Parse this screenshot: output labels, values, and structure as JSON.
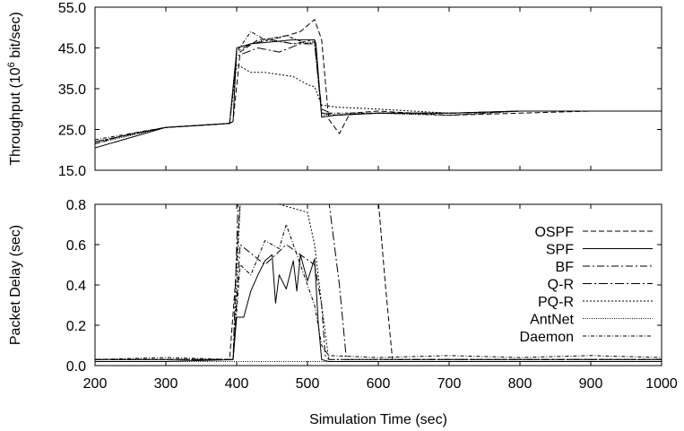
{
  "chart_data": [
    {
      "type": "line",
      "panel": "throughput",
      "title": "",
      "xlabel": "",
      "ylabel_base": "Throughput (10",
      "ylabel_exp": "6",
      "ylabel_tail": " bit/sec)",
      "xlim": [
        200,
        1000
      ],
      "ylim": [
        15,
        55
      ],
      "yticks": [
        "15.0",
        "25.0",
        "35.0",
        "45.0",
        "55.0"
      ],
      "ytick_values": [
        15,
        25,
        35,
        45,
        55
      ],
      "series": [
        {
          "name": "OSPF",
          "dash": "6,3",
          "x": [
            200,
            250,
            300,
            350,
            390,
            395,
            405,
            430,
            460,
            490,
            510,
            520,
            530,
            545,
            560,
            600,
            700,
            800,
            900,
            1000
          ],
          "y": [
            21.5,
            24,
            25.5,
            26,
            26.5,
            27,
            44,
            47,
            47.5,
            49,
            52,
            47,
            27.5,
            24,
            29,
            29.5,
            28.5,
            29,
            29.5,
            29.5
          ]
        },
        {
          "name": "SPF",
          "dash": "",
          "x": [
            200,
            250,
            300,
            350,
            390,
            395,
            400,
            420,
            450,
            480,
            510,
            512,
            520,
            540,
            600,
            700,
            800,
            900,
            1000
          ],
          "y": [
            20.5,
            23,
            25.5,
            26,
            26.5,
            27,
            45,
            46,
            46.5,
            47,
            47,
            46,
            28,
            28.5,
            29,
            29,
            29.5,
            29.5,
            29.5
          ]
        },
        {
          "name": "BF",
          "dash": "8,3,2,3",
          "x": [
            200,
            300,
            390,
            400,
            420,
            450,
            480,
            510,
            520,
            540,
            600,
            700,
            800,
            900,
            1000
          ],
          "y": [
            22,
            25.5,
            26.5,
            44,
            46,
            47,
            46,
            47,
            30,
            28.5,
            29,
            29,
            29.5,
            29.5,
            29.5
          ]
        },
        {
          "name": "Q-R",
          "dash": "10,3,2,3",
          "x": [
            200,
            300,
            390,
            400,
            430,
            460,
            490,
            510,
            520,
            540,
            600,
            700,
            800,
            900,
            1000
          ],
          "y": [
            22,
            25.5,
            26.5,
            43,
            45,
            44,
            46,
            46,
            29,
            28.5,
            29,
            29,
            29.5,
            29.5,
            29.5
          ]
        },
        {
          "name": "PQ-R",
          "dash": "2,2",
          "x": [
            200,
            300,
            390,
            400,
            420,
            440,
            480,
            500,
            510,
            520,
            540,
            600,
            700,
            800,
            900,
            1000
          ],
          "y": [
            22,
            25.5,
            26.5,
            41,
            39,
            39,
            38,
            36,
            35.5,
            31,
            30.5,
            30,
            29,
            29.5,
            29.5,
            29.5
          ]
        },
        {
          "name": "AntNet",
          "dash": "1,1.5",
          "x": [
            200,
            300,
            390,
            400,
            440,
            480,
            510,
            520,
            600,
            700,
            800,
            900,
            1000
          ],
          "y": [
            21.5,
            25.5,
            26.5,
            45,
            47,
            46,
            46.5,
            28.5,
            29,
            28.5,
            29.5,
            29.5,
            29.5
          ]
        },
        {
          "name": "Daemon",
          "dash": "4,2,1,2",
          "x": [
            200,
            300,
            390,
            400,
            420,
            440,
            470,
            500,
            510,
            520,
            600,
            700,
            800,
            900,
            1000
          ],
          "y": [
            22.5,
            25.5,
            26.5,
            44,
            49,
            47,
            48,
            46,
            46.5,
            29,
            29,
            28.5,
            29.5,
            29.5,
            29.5
          ]
        }
      ]
    },
    {
      "type": "line",
      "panel": "delay",
      "title": "",
      "xlabel": "Simulation Time (sec)",
      "ylabel": "Packet Delay (sec)",
      "xlim": [
        200,
        1000
      ],
      "ylim": [
        0,
        0.8
      ],
      "xticks": [
        "200",
        "300",
        "400",
        "500",
        "600",
        "700",
        "800",
        "900",
        "1000"
      ],
      "xtick_values": [
        200,
        300,
        400,
        500,
        600,
        700,
        800,
        900,
        1000
      ],
      "yticks": [
        "0.0",
        "0.2",
        "0.4",
        "0.6",
        "0.8"
      ],
      "ytick_values": [
        0,
        0.2,
        0.4,
        0.6,
        0.8
      ],
      "series": [
        {
          "name": "OSPF",
          "dash": "6,3",
          "x": [
            200,
            300,
            390,
            398,
            405,
            600,
            610,
            620,
            700,
            800,
            900,
            1000
          ],
          "y": [
            0.03,
            0.03,
            0.03,
            0.4,
            0.82,
            0.82,
            0.4,
            0.03,
            0.03,
            0.03,
            0.03,
            0.03
          ]
        },
        {
          "name": "SPF",
          "dash": "",
          "x": [
            200,
            300,
            395,
            400,
            410,
            420,
            430,
            440,
            450,
            455,
            460,
            470,
            480,
            485,
            490,
            500,
            510,
            515,
            520,
            530,
            600,
            700,
            800,
            900,
            1000
          ],
          "y": [
            0.02,
            0.02,
            0.03,
            0.24,
            0.24,
            0.37,
            0.45,
            0.52,
            0.55,
            0.31,
            0.45,
            0.38,
            0.52,
            0.37,
            0.55,
            0.42,
            0.53,
            0.22,
            0.03,
            0.02,
            0.02,
            0.02,
            0.02,
            0.02,
            0.02
          ]
        },
        {
          "name": "BF",
          "dash": "8,3,2,3",
          "x": [
            200,
            300,
            395,
            405,
            440,
            470,
            510,
            520,
            525,
            530,
            600,
            700,
            800,
            900,
            1000
          ],
          "y": [
            0.03,
            0.03,
            0.03,
            0.6,
            0.5,
            0.6,
            0.5,
            0.3,
            0.05,
            0.03,
            0.03,
            0.03,
            0.03,
            0.03,
            0.03
          ]
        },
        {
          "name": "Q-R",
          "dash": "10,3,2,3",
          "x": [
            200,
            300,
            395,
            402,
            420,
            530,
            545,
            555,
            600,
            700,
            800,
            900,
            1000
          ],
          "y": [
            0.03,
            0.03,
            0.03,
            0.82,
            0.82,
            0.82,
            0.4,
            0.03,
            0.03,
            0.03,
            0.03,
            0.03,
            0.03
          ]
        },
        {
          "name": "PQ-R",
          "dash": "2,2",
          "x": [
            200,
            300,
            395,
            405,
            440,
            460,
            480,
            500,
            510,
            520,
            530,
            600,
            700,
            800,
            900,
            1000
          ],
          "y": [
            0.03,
            0.03,
            0.03,
            0.8,
            0.82,
            0.8,
            0.78,
            0.76,
            0.6,
            0.3,
            0.03,
            0.03,
            0.03,
            0.03,
            0.03,
            0.03
          ]
        },
        {
          "name": "AntNet",
          "dash": "1,1.5",
          "x": [
            200,
            1000
          ],
          "y": [
            0.02,
            0.02
          ]
        },
        {
          "name": "Daemon",
          "dash": "4,2,1,2",
          "x": [
            200,
            300,
            395,
            405,
            420,
            440,
            460,
            470,
            490,
            510,
            520,
            530,
            600,
            700,
            800,
            900,
            1000
          ],
          "y": [
            0.03,
            0.04,
            0.03,
            0.5,
            0.45,
            0.62,
            0.58,
            0.7,
            0.5,
            0.3,
            0.1,
            0.05,
            0.04,
            0.05,
            0.04,
            0.05,
            0.04
          ]
        }
      ],
      "legend": {
        "placement": "right",
        "entries": [
          "OSPF",
          "SPF",
          "BF",
          "Q-R",
          "PQ-R",
          "AntNet",
          "Daemon"
        ]
      }
    }
  ]
}
